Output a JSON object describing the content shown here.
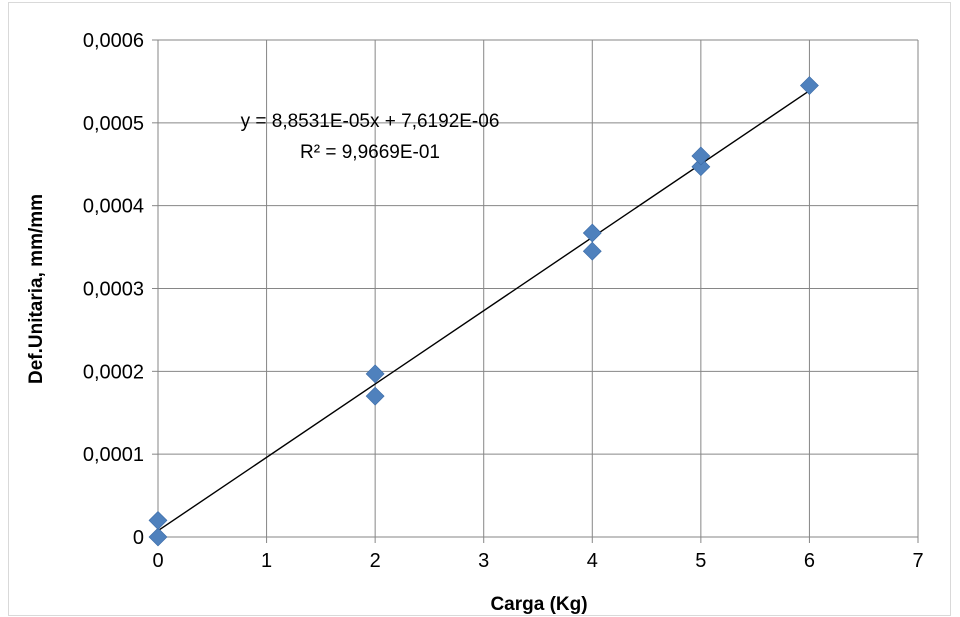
{
  "chart_data": {
    "type": "scatter",
    "title": "",
    "xlabel": "Carga (Kg)",
    "ylabel": "Def.Unitaria, mm/mm",
    "xlim": [
      0,
      7
    ],
    "ylim": [
      0,
      0.0006
    ],
    "xticks": [
      0,
      1,
      2,
      3,
      4,
      5,
      6,
      7
    ],
    "yticks": [
      0,
      0.0001,
      0.0002,
      0.0003,
      0.0004,
      0.0005,
      0.0006
    ],
    "xtick_labels": [
      "0",
      "1",
      "2",
      "3",
      "4",
      "5",
      "6",
      "7"
    ],
    "ytick_labels": [
      "0",
      "0,0001",
      "0,0002",
      "0,0003",
      "0,0004",
      "0,0005",
      "0,0006"
    ],
    "grid": true,
    "legend": false,
    "series": [
      {
        "marker": "diamond",
        "color": "#4f81bd",
        "x": [
          0,
          0,
          2,
          2,
          4,
          4,
          5,
          5,
          6
        ],
        "y": [
          0,
          2e-05,
          0.00017,
          0.000197,
          0.000345,
          0.000367,
          0.000447,
          0.00046,
          0.000545
        ]
      }
    ],
    "trendline": {
      "type": "linear",
      "slope": 8.8531e-05,
      "intercept": 7.6192e-06,
      "x_range": [
        0,
        6
      ],
      "color": "#000000"
    },
    "annotations": {
      "equation": "y = 8,8531E-05x + 7,6192E-06",
      "r_squared": "R² = 9,9669E-01"
    }
  }
}
